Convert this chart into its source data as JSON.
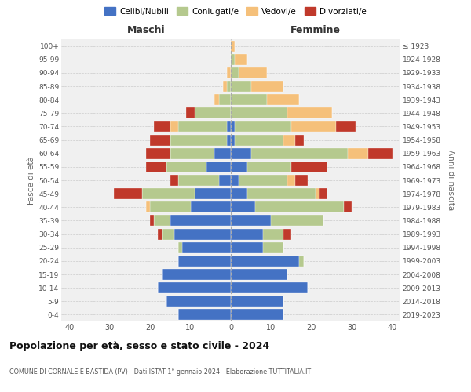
{
  "age_groups": [
    "0-4",
    "5-9",
    "10-14",
    "15-19",
    "20-24",
    "25-29",
    "30-34",
    "35-39",
    "40-44",
    "45-49",
    "50-54",
    "55-59",
    "60-64",
    "65-69",
    "70-74",
    "75-79",
    "80-84",
    "85-89",
    "90-94",
    "95-99",
    "100+"
  ],
  "birth_years": [
    "2019-2023",
    "2014-2018",
    "2009-2013",
    "2004-2008",
    "1999-2003",
    "1994-1998",
    "1989-1993",
    "1984-1988",
    "1979-1983",
    "1974-1978",
    "1969-1973",
    "1964-1968",
    "1959-1963",
    "1954-1958",
    "1949-1953",
    "1944-1948",
    "1939-1943",
    "1934-1938",
    "1929-1933",
    "1924-1928",
    "≤ 1923"
  ],
  "colors": {
    "celibi": "#4472c4",
    "coniugati": "#b5c98e",
    "vedovi": "#f5c07a",
    "divorziati": "#c0392b"
  },
  "maschi": {
    "celibi": [
      13,
      16,
      18,
      17,
      13,
      12,
      14,
      15,
      10,
      9,
      3,
      6,
      4,
      1,
      1,
      0,
      0,
      0,
      0,
      0,
      0
    ],
    "coniugati": [
      0,
      0,
      0,
      0,
      0,
      1,
      3,
      4,
      10,
      13,
      10,
      10,
      11,
      14,
      12,
      9,
      3,
      1,
      0,
      0,
      0
    ],
    "vedovi": [
      0,
      0,
      0,
      0,
      0,
      0,
      0,
      0,
      1,
      0,
      0,
      0,
      0,
      0,
      2,
      0,
      1,
      1,
      1,
      0,
      0
    ],
    "divorziati": [
      0,
      0,
      0,
      0,
      0,
      0,
      1,
      1,
      0,
      7,
      2,
      5,
      6,
      5,
      4,
      2,
      0,
      0,
      0,
      0,
      0
    ]
  },
  "femmine": {
    "celibi": [
      13,
      13,
      19,
      14,
      17,
      8,
      8,
      10,
      6,
      4,
      2,
      4,
      5,
      1,
      1,
      0,
      0,
      0,
      0,
      0,
      0
    ],
    "coniugati": [
      0,
      0,
      0,
      0,
      1,
      5,
      5,
      13,
      22,
      17,
      12,
      11,
      24,
      12,
      14,
      14,
      9,
      5,
      2,
      1,
      0
    ],
    "vedovi": [
      0,
      0,
      0,
      0,
      0,
      0,
      0,
      0,
      0,
      1,
      2,
      0,
      5,
      3,
      11,
      11,
      8,
      8,
      7,
      3,
      1
    ],
    "divorziati": [
      0,
      0,
      0,
      0,
      0,
      0,
      2,
      0,
      2,
      2,
      3,
      9,
      6,
      2,
      5,
      0,
      0,
      0,
      0,
      0,
      0
    ]
  },
  "title": "Popolazione per età, sesso e stato civile - 2024",
  "subtitle": "COMUNE DI CORNALE E BASTIDA (PV) - Dati ISTAT 1° gennaio 2024 - Elaborazione TUTTITALIA.IT",
  "xlabel_left": "Maschi",
  "xlabel_right": "Femmine",
  "ylabel_left": "Fasce di età",
  "ylabel_right": "Anni di nascita",
  "xlim": 42,
  "legend_labels": [
    "Celibi/Nubili",
    "Coniugati/e",
    "Vedovi/e",
    "Divorziati/e"
  ],
  "bg_color": "#f0f0f0",
  "bar_color_keys": [
    "celibi",
    "coniugati",
    "vedovi",
    "divorziati"
  ]
}
